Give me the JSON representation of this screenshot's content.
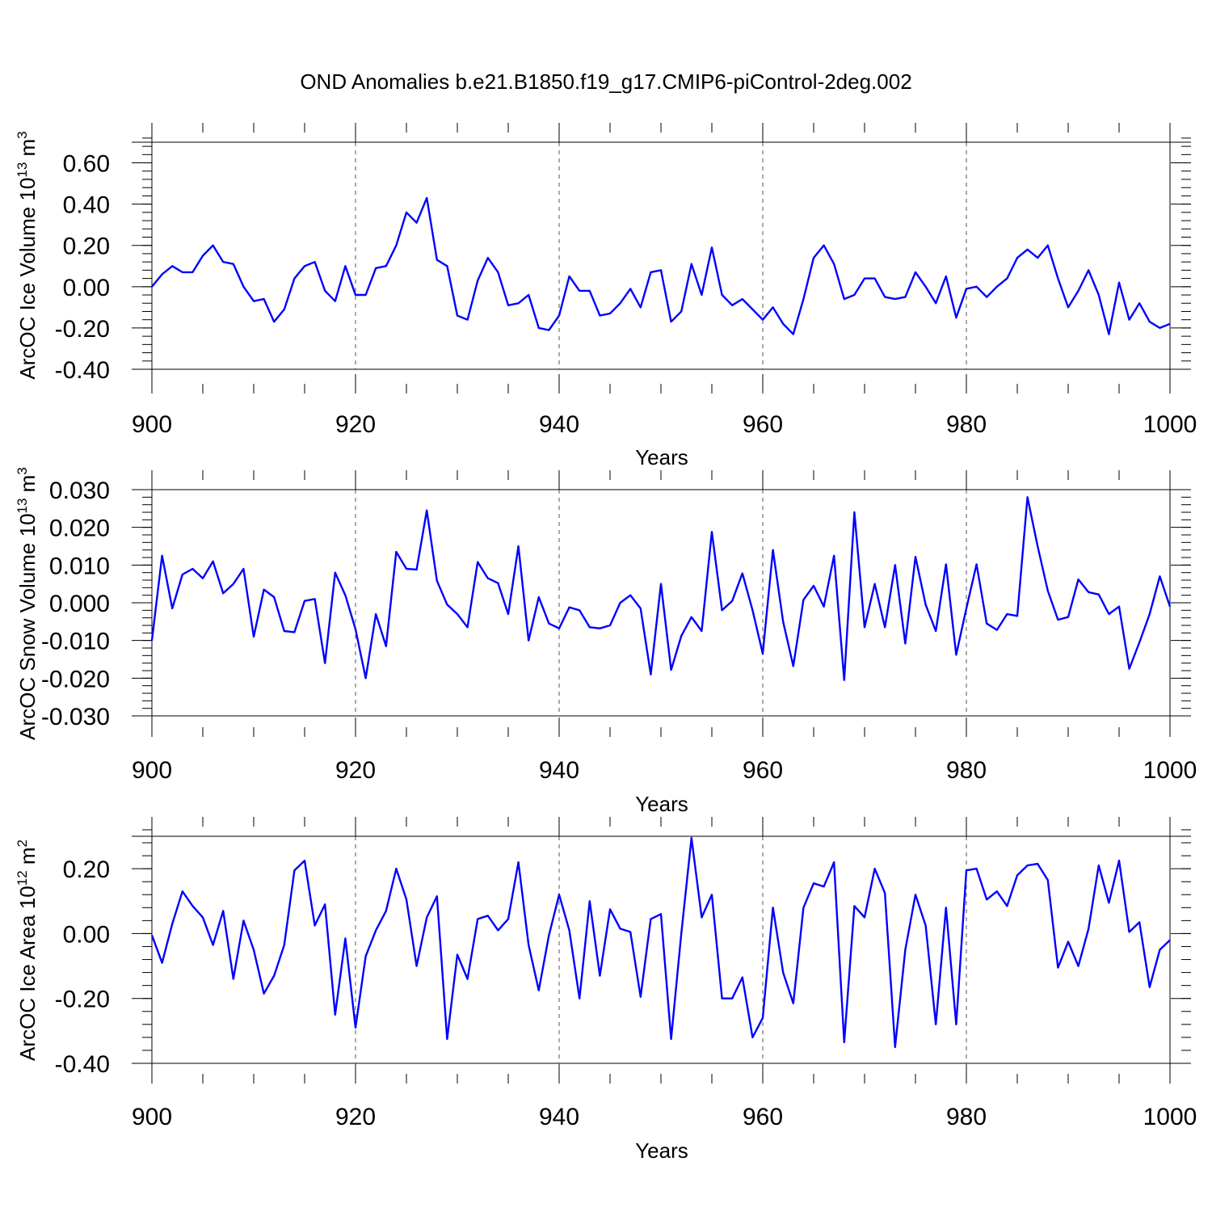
{
  "figure_title": "OND Anomalies b.e21.B1850.f19_g17.CMIP6-piControl-2deg.002",
  "colors": {
    "series": "#0000ff",
    "axes": "#000000",
    "grid": "#555555"
  },
  "chart_data": [
    {
      "type": "line",
      "ylabel": "ArcOC Ice Volume 10",
      "ylabel_exp": "13",
      "ylabel_unit": " m",
      "ylabel_unit_exp": "3",
      "xlabel": "Years",
      "xlim": [
        900,
        1000
      ],
      "ylim": [
        -0.4,
        0.7
      ],
      "xticks": [
        900,
        920,
        940,
        960,
        980,
        1000
      ],
      "xtick_labels": [
        "900",
        "920",
        "940",
        "960",
        "980",
        "1000"
      ],
      "yticks": [
        -0.4,
        -0.2,
        0.0,
        0.2,
        0.4,
        0.6
      ],
      "ytick_labels": [
        "-0.40",
        "-0.20",
        "0.00",
        "0.20",
        "0.40",
        "0.60"
      ],
      "yminor_step": 0.04,
      "grid": "dashed vertical at 920, 940, 960, 980",
      "x_start": 900,
      "values": [
        0.0,
        0.06,
        0.1,
        0.07,
        0.07,
        0.15,
        0.2,
        0.12,
        0.11,
        0.0,
        -0.07,
        -0.06,
        -0.17,
        -0.11,
        0.04,
        0.1,
        0.12,
        -0.02,
        -0.07,
        0.1,
        -0.04,
        -0.04,
        0.09,
        0.1,
        0.2,
        0.36,
        0.31,
        0.43,
        0.13,
        0.1,
        -0.14,
        -0.16,
        0.03,
        0.14,
        0.07,
        -0.09,
        -0.08,
        -0.04,
        -0.2,
        -0.21,
        -0.14,
        0.05,
        -0.02,
        -0.02,
        -0.14,
        -0.13,
        -0.08,
        -0.01,
        -0.1,
        0.07,
        0.08,
        -0.17,
        -0.12,
        0.11,
        -0.04,
        0.19,
        -0.04,
        -0.09,
        -0.06,
        -0.11,
        -0.16,
        -0.1,
        -0.18,
        -0.23,
        -0.06,
        0.14,
        0.2,
        0.11,
        -0.06,
        -0.04,
        0.04,
        0.04,
        -0.05,
        -0.06,
        -0.05,
        0.07,
        0.0,
        -0.08,
        0.05,
        -0.15,
        -0.01,
        0.0,
        -0.05,
        0.0,
        0.04,
        0.14,
        0.18,
        0.14,
        0.2,
        0.04,
        -0.1,
        -0.02,
        0.08,
        -0.04,
        -0.23,
        0.02,
        -0.16,
        -0.08,
        -0.17,
        -0.2,
        -0.18
      ]
    },
    {
      "type": "line",
      "ylabel": "ArcOC Snow Volume 10",
      "ylabel_exp": "13",
      "ylabel_unit": " m",
      "ylabel_unit_exp": "3",
      "xlabel": "Years",
      "xlim": [
        900,
        1000
      ],
      "ylim": [
        -0.03,
        0.03
      ],
      "xticks": [
        900,
        920,
        940,
        960,
        980,
        1000
      ],
      "xtick_labels": [
        "900",
        "920",
        "940",
        "960",
        "980",
        "1000"
      ],
      "yticks": [
        -0.03,
        -0.02,
        -0.01,
        0.0,
        0.01,
        0.02,
        0.03
      ],
      "ytick_labels": [
        "-0.030",
        "-0.020",
        "-0.010",
        "0.000",
        "0.010",
        "0.020",
        "0.030"
      ],
      "yminor_step": 0.002,
      "grid": "dashed vertical at 920, 940, 960, 980",
      "x_start": 900,
      "values": [
        -0.01,
        0.0125,
        -0.0015,
        0.0075,
        0.009,
        0.0065,
        0.011,
        0.0025,
        0.005,
        0.009,
        -0.009,
        0.0035,
        0.0015,
        -0.0075,
        -0.0078,
        0.0005,
        0.001,
        -0.016,
        0.008,
        0.002,
        -0.007,
        -0.02,
        -0.003,
        -0.0115,
        0.0135,
        0.009,
        0.0088,
        0.0245,
        0.0058,
        -0.0005,
        -0.003,
        -0.0065,
        0.0108,
        0.0065,
        0.0052,
        -0.003,
        0.015,
        -0.01,
        0.0015,
        -0.0055,
        -0.0068,
        -0.0012,
        -0.002,
        -0.0065,
        -0.0068,
        -0.006,
        0.0,
        0.002,
        -0.0015,
        -0.019,
        0.005,
        -0.0178,
        -0.0088,
        -0.0038,
        -0.0075,
        0.0188,
        -0.002,
        0.0005,
        0.0078,
        -0.002,
        -0.0135,
        0.014,
        -0.005,
        -0.0168,
        0.0008,
        0.0045,
        -0.001,
        0.0125,
        -0.0205,
        0.024,
        -0.0065,
        0.005,
        -0.0065,
        0.01,
        -0.0108,
        0.0122,
        -0.0005,
        -0.0075,
        0.0102,
        -0.0138,
        -0.0015,
        0.0102,
        -0.0055,
        -0.0072,
        -0.003,
        -0.0035,
        0.028,
        0.015,
        0.0032,
        -0.0045,
        -0.0038,
        0.0062,
        0.0028,
        0.0022,
        -0.003,
        -0.001,
        -0.0175,
        -0.0105,
        -0.003,
        0.007,
        -0.001
      ]
    },
    {
      "type": "line",
      "ylabel": "ArcOC Ice Area 10",
      "ylabel_exp": "12",
      "ylabel_unit": " m",
      "ylabel_unit_exp": "2",
      "xlabel": "Years",
      "xlim": [
        900,
        1000
      ],
      "ylim": [
        -0.4,
        0.3
      ],
      "xticks": [
        900,
        920,
        940,
        960,
        980,
        1000
      ],
      "xtick_labels": [
        "900",
        "920",
        "940",
        "960",
        "980",
        "1000"
      ],
      "yticks": [
        -0.4,
        -0.2,
        0.0,
        0.2
      ],
      "ytick_labels": [
        "-0.40",
        "-0.20",
        "0.00",
        "0.20"
      ],
      "yminor_step": 0.04,
      "grid": "dashed vertical at 920, 940, 960, 980",
      "x_start": 900,
      "values": [
        -0.005,
        -0.09,
        0.03,
        0.13,
        0.085,
        0.05,
        -0.035,
        0.07,
        -0.14,
        0.04,
        -0.05,
        -0.185,
        -0.13,
        -0.035,
        0.195,
        0.225,
        0.025,
        0.09,
        -0.25,
        -0.015,
        -0.29,
        -0.07,
        0.01,
        0.07,
        0.2,
        0.105,
        -0.1,
        0.05,
        0.115,
        -0.325,
        -0.065,
        -0.14,
        0.045,
        0.055,
        0.01,
        0.045,
        0.22,
        -0.035,
        -0.175,
        -0.005,
        0.12,
        0.01,
        -0.2,
        0.1,
        -0.13,
        0.075,
        0.015,
        0.005,
        -0.195,
        0.045,
        0.06,
        -0.325,
        0.0,
        0.295,
        0.05,
        0.12,
        -0.2,
        -0.2,
        -0.135,
        -0.32,
        -0.26,
        0.08,
        -0.12,
        -0.215,
        0.08,
        0.155,
        0.145,
        0.22,
        -0.335,
        0.085,
        0.05,
        0.2,
        0.125,
        -0.35,
        -0.05,
        0.12,
        0.025,
        -0.28,
        0.08,
        -0.28,
        0.195,
        0.2,
        0.105,
        0.13,
        0.085,
        0.18,
        0.21,
        0.215,
        0.165,
        -0.105,
        -0.025,
        -0.1,
        0.015,
        0.21,
        0.095,
        0.225,
        0.005,
        0.035,
        -0.165,
        -0.05,
        -0.02
      ]
    }
  ]
}
